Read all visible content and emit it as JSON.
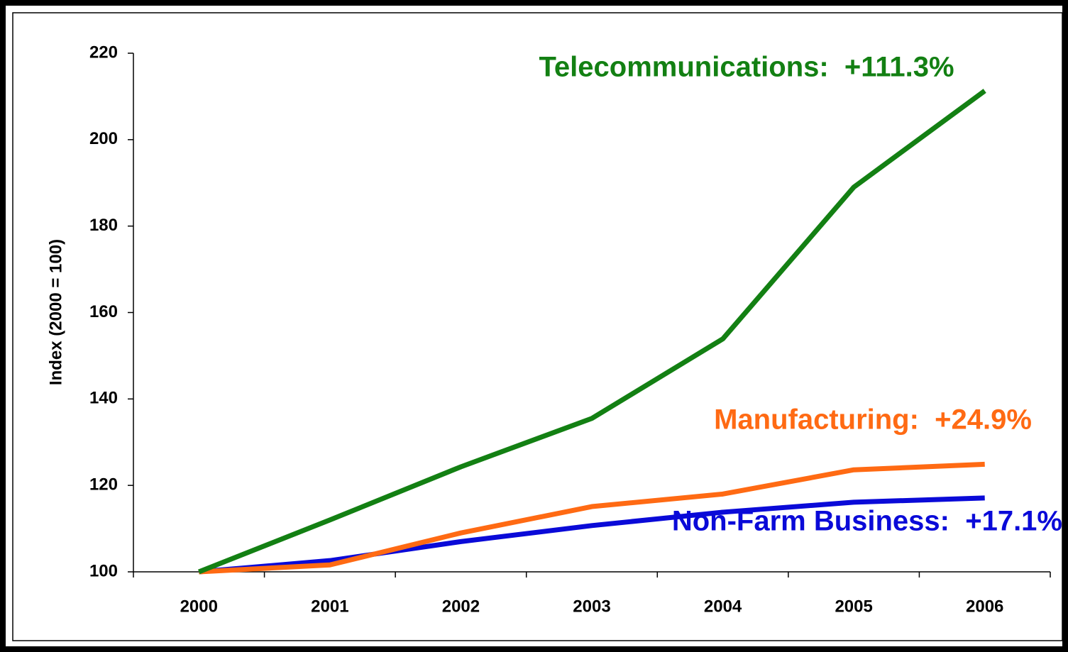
{
  "chart_data": {
    "type": "line",
    "y_label": "Index (2000 = 100)",
    "categories": [
      "2000",
      "2001",
      "2002",
      "2003",
      "2004",
      "2005",
      "2006"
    ],
    "series": [
      {
        "name": "Telecommunications",
        "color": "#138013",
        "values": [
          100,
          112,
          124.3,
          135.5,
          153.9,
          189,
          211.3
        ]
      },
      {
        "name": "Manufacturing",
        "color": "#ff6a13",
        "values": [
          100,
          101.6,
          109,
          115.1,
          118,
          123.6,
          124.9
        ]
      },
      {
        "name": "Non-Farm Business",
        "color": "#0a0ad8",
        "values": [
          100,
          102.6,
          107,
          110.7,
          113.8,
          116.1,
          117.1
        ]
      }
    ],
    "annotations": [
      {
        "text": "Telecommunications:  +111.3%",
        "color": "#138013"
      },
      {
        "text": "Manufacturing:  +24.9%",
        "color": "#ff6a13"
      },
      {
        "text": "Non-Farm Business:  +17.1%",
        "color": "#0a0ad8"
      }
    ],
    "ylim": [
      100,
      220
    ],
    "yticks": [
      100,
      120,
      140,
      160,
      180,
      200,
      220
    ],
    "grid": false
  }
}
